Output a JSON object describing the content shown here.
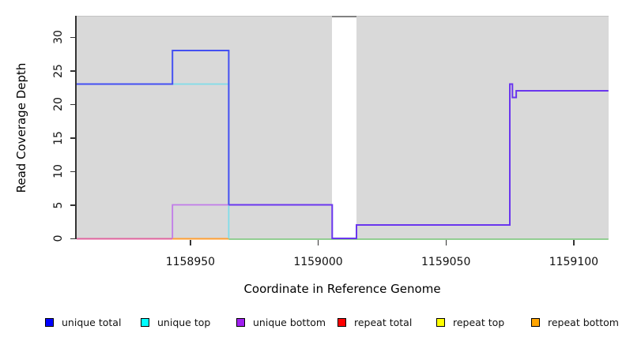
{
  "chart_data": {
    "type": "line",
    "title": "",
    "xlabel": "Coordinate in Reference Genome",
    "ylabel": "Read Coverage Depth",
    "xlim": [
      1158905.5,
      1159113.6
    ],
    "ylim": [
      0,
      33.2
    ],
    "x_ticks": [
      1158950,
      1159000,
      1159050,
      1159100
    ],
    "y_ticks": [
      0,
      5,
      10,
      15,
      20,
      25,
      30
    ],
    "grid": false,
    "panel_background": "#d9d9d9",
    "gap_region": {
      "x_start": 1159005.5,
      "x_end": 1159015,
      "fill": "#ffffff",
      "top_border": "#828282"
    },
    "series": [
      {
        "name": "unique total",
        "color": "#0000ff",
        "points": [
          [
            1158905.5,
            23
          ],
          [
            1158943,
            23
          ],
          [
            1158943,
            28
          ],
          [
            1158965,
            28
          ],
          [
            1158965,
            5
          ],
          [
            1159005.5,
            5
          ],
          [
            1159005.5,
            0
          ],
          [
            1159015,
            0
          ],
          [
            1159015,
            2
          ],
          [
            1159075,
            2
          ],
          [
            1159075,
            23
          ],
          [
            1159076,
            23
          ],
          [
            1159076,
            21
          ],
          [
            1159077.5,
            21
          ],
          [
            1159077.5,
            22
          ],
          [
            1159113.6,
            22
          ]
        ]
      },
      {
        "name": "unique top",
        "color": "#00ffff",
        "points": [
          [
            1158905.5,
            23
          ],
          [
            1158965,
            23
          ],
          [
            1158965,
            0
          ],
          [
            1159113.6,
            0
          ]
        ]
      },
      {
        "name": "unique bottom",
        "color": "#a020f0",
        "points": [
          [
            1158905.5,
            0
          ],
          [
            1158943,
            0
          ],
          [
            1158943,
            5
          ],
          [
            1158965,
            5
          ],
          [
            1159005.5,
            5
          ],
          [
            1159005.5,
            0
          ],
          [
            1159015,
            0
          ],
          [
            1159015,
            2
          ],
          [
            1159075,
            2
          ],
          [
            1159075,
            23
          ],
          [
            1159076,
            23
          ],
          [
            1159076,
            21
          ],
          [
            1159077.5,
            21
          ],
          [
            1159077.5,
            22
          ],
          [
            1159113.6,
            22
          ]
        ]
      },
      {
        "name": "repeat total",
        "color": "#ff0000",
        "points": [
          [
            1158905.5,
            0
          ],
          [
            1159113.6,
            0
          ]
        ]
      },
      {
        "name": "repeat top",
        "color": "#ffff00",
        "points": [
          [
            1158905.5,
            0
          ],
          [
            1159113.6,
            0
          ]
        ]
      },
      {
        "name": "repeat bottom",
        "color": "#ffa500",
        "points": [
          [
            1158905.5,
            0
          ],
          [
            1159113.6,
            0
          ]
        ]
      }
    ],
    "visible_strokes": [
      {
        "name": "overlap-red-purple-at-zero",
        "color": "#e0649e",
        "width": 2,
        "points": [
          [
            1158905.5,
            -0.06
          ],
          [
            1158943,
            -0.06
          ]
        ]
      },
      {
        "name": "overlap-repeat-at-zero",
        "color": "#ff9f33",
        "width": 2,
        "points": [
          [
            1158943,
            -0.06
          ],
          [
            1158965,
            -0.06
          ]
        ]
      },
      {
        "name": "overlap-cyan-yellow-at-zero",
        "color": "#85ca85",
        "width": 1.8,
        "points": [
          [
            1158965,
            -0.12
          ],
          [
            1159113.6,
            -0.12
          ]
        ]
      },
      {
        "name": "unique-top-visible",
        "color": "#7fdde9",
        "width": 1.8,
        "points": [
          [
            1158905.5,
            23
          ],
          [
            1158965,
            23
          ],
          [
            1158965,
            0
          ]
        ]
      },
      {
        "name": "unique-bottom-visible",
        "color": "#c17be9",
        "width": 1.8,
        "points": [
          [
            1158943,
            0
          ],
          [
            1158943,
            5
          ],
          [
            1158965,
            5
          ]
        ]
      },
      {
        "name": "overlap-blue-purple",
        "color": "#6a36ee",
        "width": 2,
        "points": [
          [
            1158965,
            5
          ],
          [
            1159005.5,
            5
          ],
          [
            1159005.5,
            0
          ],
          [
            1159015,
            0
          ],
          [
            1159015,
            2
          ],
          [
            1159075,
            2
          ],
          [
            1159075,
            23
          ],
          [
            1159076,
            23
          ],
          [
            1159076,
            21
          ],
          [
            1159077.5,
            21
          ],
          [
            1159077.5,
            22
          ],
          [
            1159113.6,
            22
          ]
        ]
      },
      {
        "name": "unique-total-visible",
        "color": "#4450f2",
        "width": 2,
        "points": [
          [
            1158905.5,
            23
          ],
          [
            1158943,
            23
          ],
          [
            1158943,
            28
          ],
          [
            1158965,
            28
          ],
          [
            1158965,
            5
          ]
        ]
      }
    ]
  },
  "legend": {
    "items": [
      {
        "label": "unique total",
        "color": "#0000ff",
        "x": 57
      },
      {
        "label": "unique top",
        "color": "#00ffff",
        "x": 178
      },
      {
        "label": "unique bottom",
        "color": "#a020f0",
        "x": 299
      },
      {
        "label": "repeat total",
        "color": "#ff0000",
        "x": 427
      },
      {
        "label": "repeat top",
        "color": "#ffff00",
        "x": 552
      },
      {
        "label": "repeat bottom",
        "color": "#ffa500",
        "x": 672
      }
    ]
  }
}
